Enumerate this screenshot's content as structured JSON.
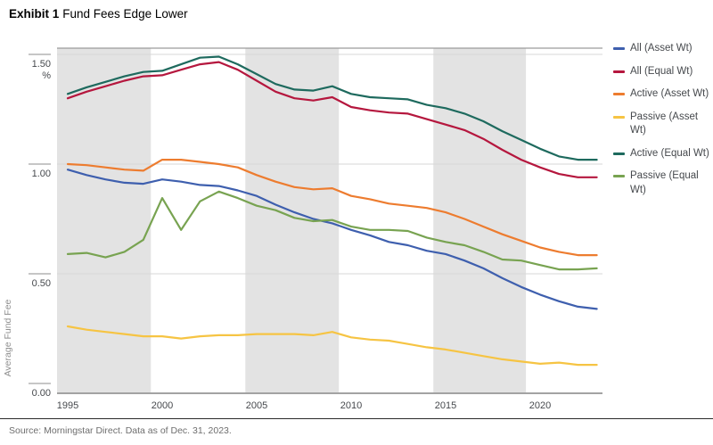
{
  "title": {
    "exhibit": "Exhibit 1",
    "name": "Fund Fees Edge Lower"
  },
  "source": "Source: Morningstar Direct. Data as of Dec. 31, 2023.",
  "chart_data": {
    "type": "line",
    "title": "Fund Fees Edge Lower",
    "ylabel": "Average Fund Fee",
    "y_unit": "%",
    "xlabel": "",
    "x": [
      1995,
      1996,
      1997,
      1998,
      1999,
      2000,
      2001,
      2002,
      2003,
      2004,
      2005,
      2006,
      2007,
      2008,
      2009,
      2010,
      2011,
      2012,
      2013,
      2014,
      2015,
      2016,
      2017,
      2018,
      2019,
      2020,
      2021,
      2022,
      2023
    ],
    "series": [
      {
        "name": "All (Asset Wt)",
        "color": "#3e5fae",
        "values": [
          0.975,
          0.95,
          0.93,
          0.915,
          0.91,
          0.93,
          0.92,
          0.905,
          0.9,
          0.88,
          0.855,
          0.815,
          0.78,
          0.75,
          0.73,
          0.7,
          0.675,
          0.645,
          0.63,
          0.605,
          0.59,
          0.56,
          0.525,
          0.48,
          0.44,
          0.405,
          0.375,
          0.35,
          0.34
        ]
      },
      {
        "name": "All (Equal Wt)",
        "color": "#b5173e",
        "values": [
          1.3,
          1.33,
          1.355,
          1.38,
          1.4,
          1.405,
          1.43,
          1.455,
          1.465,
          1.43,
          1.38,
          1.33,
          1.3,
          1.29,
          1.305,
          1.26,
          1.245,
          1.235,
          1.23,
          1.205,
          1.18,
          1.155,
          1.115,
          1.065,
          1.02,
          0.985,
          0.955,
          0.94,
          0.94
        ]
      },
      {
        "name": "Active (Asset Wt)",
        "color": "#ed7c2f",
        "values": [
          1.0,
          0.995,
          0.985,
          0.975,
          0.97,
          1.02,
          1.02,
          1.01,
          1.0,
          0.985,
          0.95,
          0.92,
          0.895,
          0.885,
          0.89,
          0.855,
          0.84,
          0.82,
          0.81,
          0.8,
          0.78,
          0.75,
          0.715,
          0.68,
          0.65,
          0.62,
          0.6,
          0.585,
          0.585
        ]
      },
      {
        "name": "Passive (Asset Wt)",
        "color": "#f6c443",
        "values": [
          0.26,
          0.245,
          0.235,
          0.225,
          0.215,
          0.215,
          0.205,
          0.215,
          0.22,
          0.22,
          0.225,
          0.225,
          0.225,
          0.22,
          0.235,
          0.21,
          0.2,
          0.195,
          0.18,
          0.165,
          0.155,
          0.14,
          0.125,
          0.11,
          0.1,
          0.09,
          0.095,
          0.085,
          0.085
        ]
      },
      {
        "name": "Active (Equal Wt)",
        "color": "#1e6a5e",
        "values": [
          1.32,
          1.35,
          1.375,
          1.4,
          1.42,
          1.425,
          1.455,
          1.485,
          1.49,
          1.455,
          1.41,
          1.365,
          1.34,
          1.335,
          1.355,
          1.32,
          1.305,
          1.3,
          1.295,
          1.27,
          1.255,
          1.23,
          1.195,
          1.15,
          1.11,
          1.07,
          1.035,
          1.02,
          1.02
        ]
      },
      {
        "name": "Passive (Equal Wt)",
        "color": "#78a351",
        "values": [
          0.59,
          0.595,
          0.575,
          0.6,
          0.655,
          0.845,
          0.7,
          0.83,
          0.875,
          0.845,
          0.81,
          0.79,
          0.755,
          0.74,
          0.745,
          0.715,
          0.7,
          0.7,
          0.695,
          0.665,
          0.645,
          0.63,
          0.6,
          0.565,
          0.56,
          0.54,
          0.52,
          0.52,
          0.525
        ]
      }
    ],
    "ylim": [
      0,
      1.5
    ],
    "yticks": [
      0.0,
      0.5,
      1.0,
      1.5
    ],
    "ytick_labels": [
      "0.00",
      "0.50",
      "1.00",
      "1.50"
    ],
    "xticks": [
      1995,
      2000,
      2005,
      2010,
      2015,
      2020
    ],
    "x_domain": [
      1994.43,
      2023.32
    ],
    "shaded_year_bands": [
      [
        1994.43,
        1999.4
      ],
      [
        2004.4,
        2009.35
      ],
      [
        2014.35,
        2019.25
      ]
    ],
    "band_color": "#e3e3e3",
    "grid": true,
    "legend_position": "right"
  }
}
